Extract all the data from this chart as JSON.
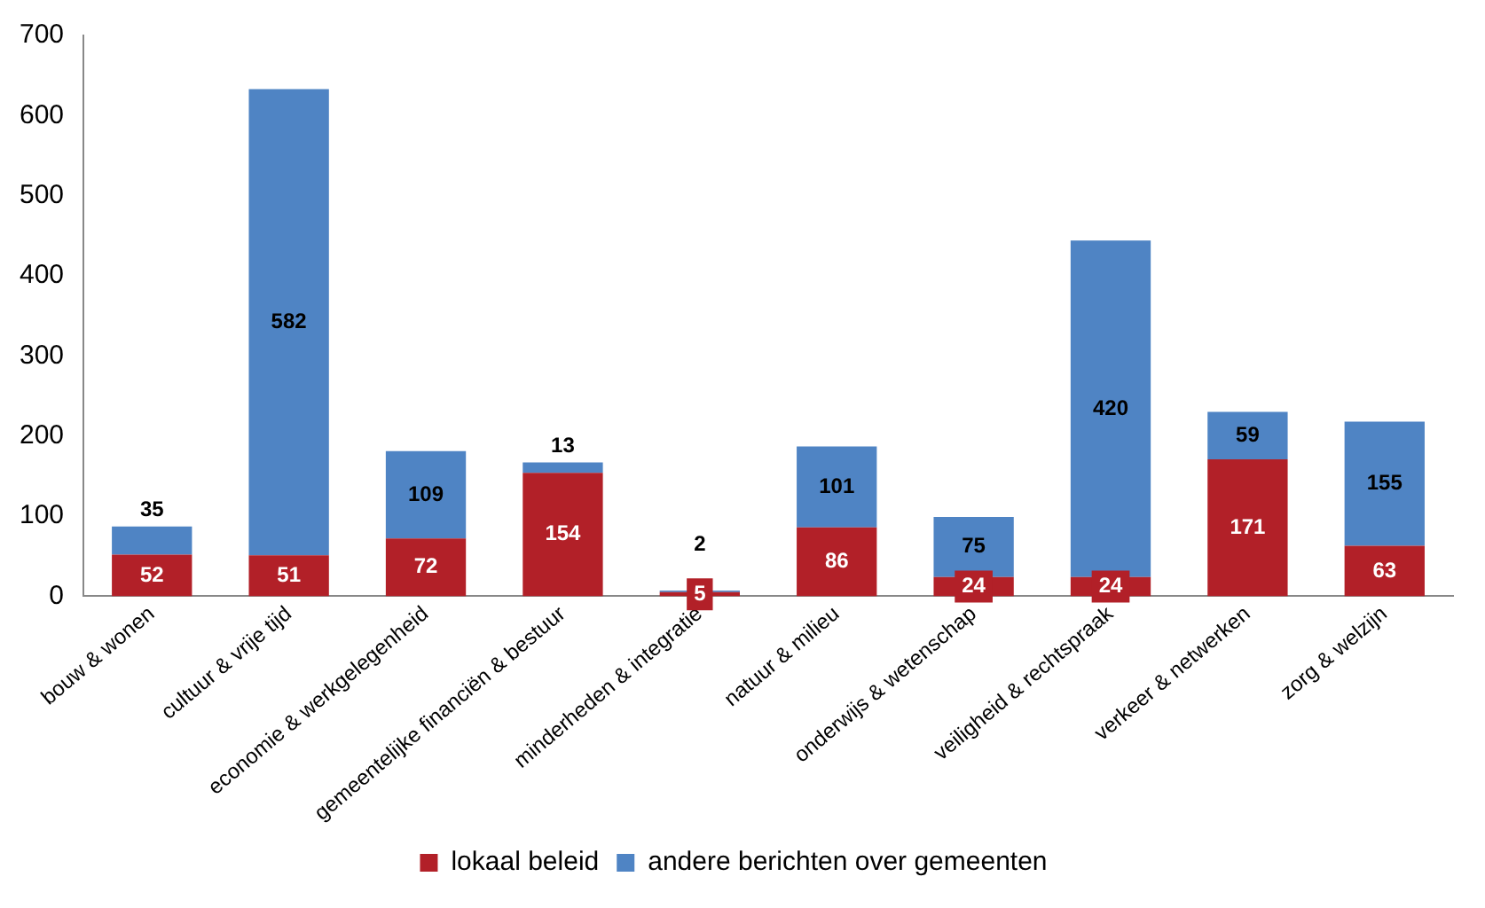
{
  "chart_data": {
    "type": "bar",
    "stacked": true,
    "categories": [
      "bouw & wonen",
      "cultuur & vrije tijd",
      "economie & werkgelegenheid",
      "gemeentelijke financiën & bestuur",
      "minderheden & integratie",
      "natuur & milieu",
      "onderwijs & wetenschap",
      "veiligheid & rechtspraak",
      "verkeer & netwerken",
      "zorg & welzijn"
    ],
    "series": [
      {
        "name": "lokaal beleid",
        "color": "#b22028",
        "values": [
          52,
          51,
          72,
          154,
          5,
          86,
          24,
          24,
          171,
          63
        ]
      },
      {
        "name": "andere berichten over gemeenten",
        "color": "#4f84c4",
        "values": [
          35,
          582,
          109,
          13,
          2,
          101,
          75,
          420,
          59,
          155
        ]
      }
    ],
    "ylim": [
      0,
      700
    ],
    "yticks": [
      0,
      100,
      200,
      300,
      400,
      500,
      600,
      700
    ],
    "legend": "bottom",
    "data_labels": true
  }
}
